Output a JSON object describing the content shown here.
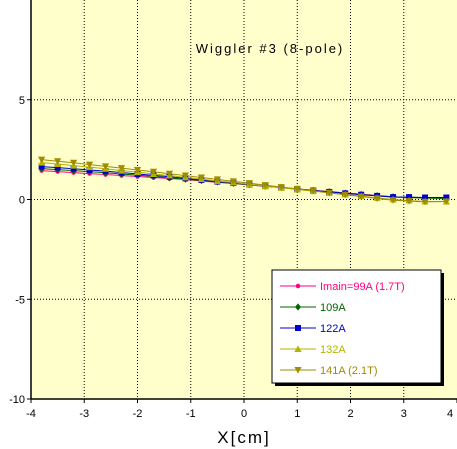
{
  "chart_data": {
    "type": "line",
    "title": "Wiggler #3 (8-pole)",
    "xlabel": "X[cm]",
    "ylabel": "",
    "xlim": [
      -4,
      4
    ],
    "ylim": [
      -10,
      10
    ],
    "xticks": [
      -4,
      -3,
      -2,
      -1,
      0,
      1,
      2,
      3,
      4
    ],
    "yticks": [
      -10,
      -5,
      0,
      5
    ],
    "grid": true,
    "plot_background": "#ffffcc",
    "legend_position": "bottom-right",
    "x": [
      -3.8,
      -3.5,
      -3.2,
      -2.9,
      -2.6,
      -2.3,
      -2.0,
      -1.7,
      -1.4,
      -1.1,
      -0.8,
      -0.5,
      -0.2,
      0.1,
      0.4,
      0.7,
      1.0,
      1.3,
      1.6,
      1.9,
      2.2,
      2.5,
      2.8,
      3.1,
      3.4,
      3.8
    ],
    "series": [
      {
        "name": "Imain=99A (1.7T)",
        "color": "#ff0080",
        "marker": "circle",
        "values": [
          1.45,
          1.4,
          1.35,
          1.3,
          1.25,
          1.2,
          1.15,
          1.1,
          1.05,
          1.0,
          0.93,
          0.86,
          0.8,
          0.73,
          0.66,
          0.6,
          0.53,
          0.46,
          0.4,
          0.33,
          0.27,
          0.2,
          0.14,
          0.1,
          0.08,
          0.1
        ]
      },
      {
        "name": "109A",
        "color": "#006600",
        "marker": "diamond",
        "values": [
          1.55,
          1.5,
          1.45,
          1.4,
          1.34,
          1.28,
          1.22,
          1.15,
          1.08,
          1.02,
          0.95,
          0.88,
          0.81,
          0.74,
          0.67,
          0.6,
          0.53,
          0.46,
          0.39,
          0.32,
          0.25,
          0.19,
          0.13,
          0.1,
          0.07,
          0.05
        ]
      },
      {
        "name": "122A",
        "color": "#0000cc",
        "marker": "square",
        "values": [
          1.65,
          1.6,
          1.54,
          1.48,
          1.42,
          1.35,
          1.28,
          1.21,
          1.14,
          1.06,
          0.98,
          0.9,
          0.83,
          0.75,
          0.67,
          0.6,
          0.52,
          0.45,
          0.38,
          0.31,
          0.24,
          0.18,
          0.12,
          0.12,
          0.1,
          0.1
        ]
      },
      {
        "name": "132A",
        "color": "#b3b300",
        "marker": "triangle-up",
        "values": [
          1.85,
          1.78,
          1.7,
          1.62,
          1.54,
          1.45,
          1.37,
          1.28,
          1.2,
          1.11,
          1.02,
          0.93,
          0.85,
          0.76,
          0.67,
          0.59,
          0.5,
          0.42,
          0.33,
          0.25,
          0.17,
          0.08,
          0.0,
          -0.05,
          -0.1,
          -0.1
        ]
      },
      {
        "name": "141A (2.1T)",
        "color": "#a08c00",
        "marker": "triangle-down",
        "values": [
          2.0,
          1.92,
          1.84,
          1.75,
          1.66,
          1.57,
          1.48,
          1.39,
          1.29,
          1.2,
          1.1,
          1.01,
          0.91,
          0.82,
          0.72,
          0.62,
          0.53,
          0.43,
          0.34,
          0.24,
          0.15,
          0.05,
          -0.04,
          -0.08,
          -0.12,
          -0.1
        ]
      }
    ]
  }
}
